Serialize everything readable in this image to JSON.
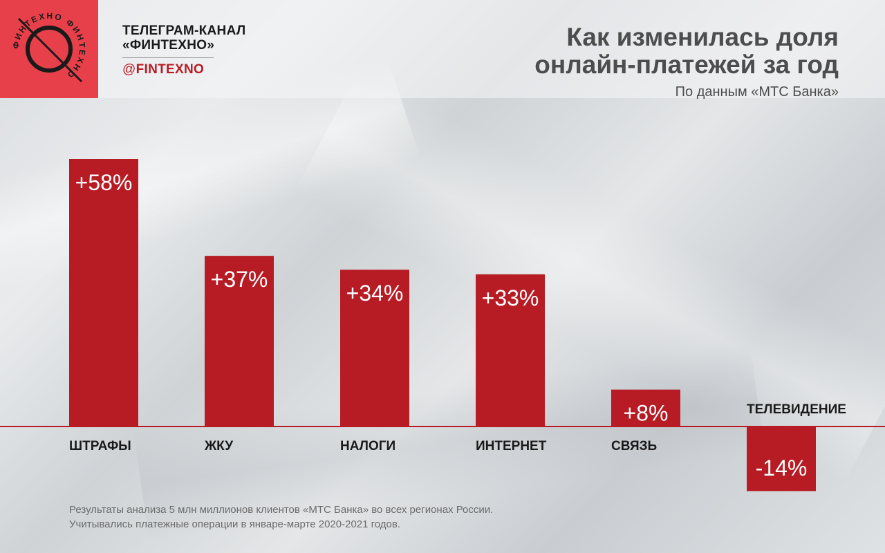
{
  "brand": {
    "channel_line1": "ТЕЛЕГРАМ-КАНАЛ",
    "channel_line2": "«ФИНТЕХНО»",
    "handle_at": "@",
    "handle_name": "FINTEXNO",
    "logo_ring_text": "ФИНТЕХНО ФИНТЕХНО",
    "accent_color": "#b71c25",
    "logo_color": "#e8404a"
  },
  "chart_data": {
    "type": "bar",
    "title": "Как изменилась доля онлайн-платежей за год",
    "title_lines": [
      "Как изменилась доля",
      "онлайн-платежей за год"
    ],
    "subtitle": "По данным «МТС Банка»",
    "categories": [
      "ШТРАФЫ",
      "ЖКУ",
      "НАЛОГИ",
      "ИНТЕРНЕТ",
      "СВЯЗЬ",
      "ТЕЛЕВИДЕНИЕ"
    ],
    "values": [
      58,
      37,
      34,
      33,
      8,
      -14
    ],
    "value_labels": [
      "+58%",
      "+37%",
      "+34%",
      "+33%",
      "+8%",
      "-14%"
    ],
    "unit": "%",
    "bar_color": "#b71c25",
    "ylim": [
      -14,
      58
    ],
    "grid": false,
    "legend": "none"
  },
  "footnote": {
    "line1": "Результаты анализа 5 млн миллионов клиентов «МТС Банка» во всех регионах России.",
    "line2": "Учитывались платежные операции в январе-марте 2020-2021 годов."
  }
}
